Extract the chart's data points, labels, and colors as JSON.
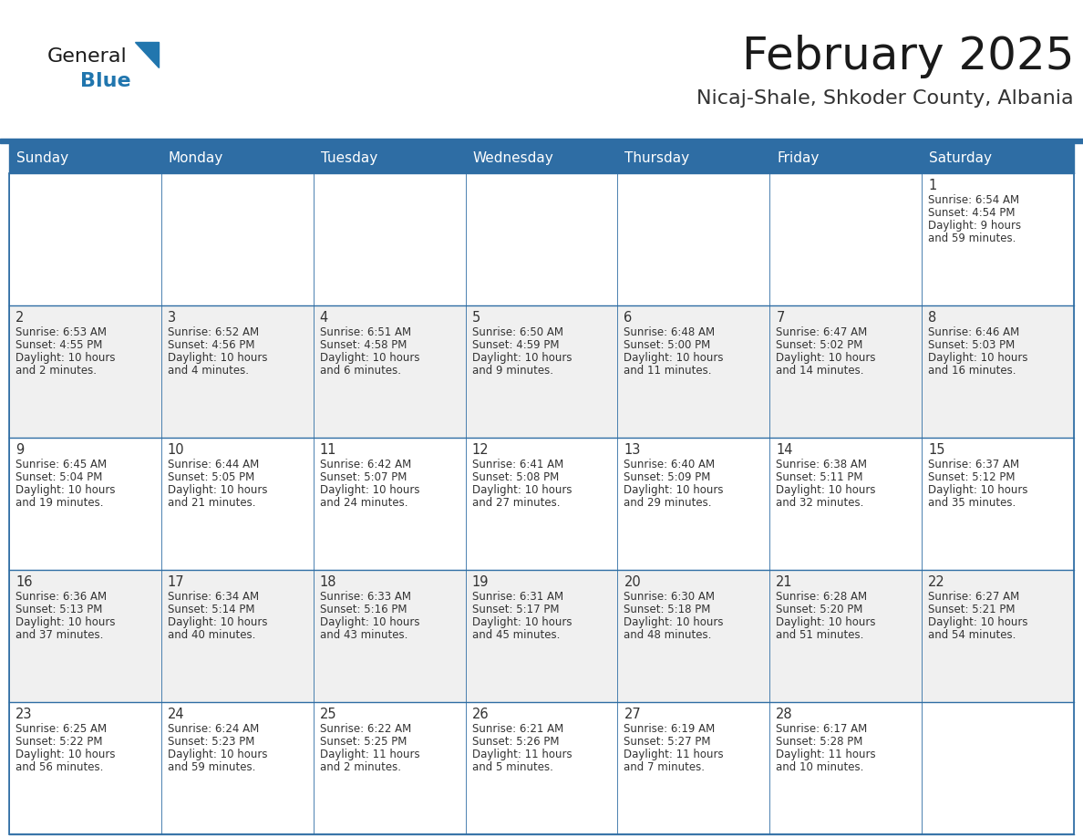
{
  "title": "February 2025",
  "subtitle": "Nicaj-Shale, Shkoder County, Albania",
  "header_bg": "#2E6DA4",
  "header_text": "#FFFFFF",
  "cell_bg_white": "#FFFFFF",
  "cell_bg_gray": "#F0F0F0",
  "cell_border": "#2E6DA4",
  "day_headers": [
    "Sunday",
    "Monday",
    "Tuesday",
    "Wednesday",
    "Thursday",
    "Friday",
    "Saturday"
  ],
  "title_color": "#1a1a1a",
  "subtitle_color": "#333333",
  "text_color": "#333333",
  "days": [
    {
      "day": 1,
      "col": 6,
      "row": 0,
      "sunrise": "6:54 AM",
      "sunset": "4:54 PM",
      "daylight_hours": "9 hours",
      "daylight_mins": "and 59 minutes."
    },
    {
      "day": 2,
      "col": 0,
      "row": 1,
      "sunrise": "6:53 AM",
      "sunset": "4:55 PM",
      "daylight_hours": "10 hours",
      "daylight_mins": "and 2 minutes."
    },
    {
      "day": 3,
      "col": 1,
      "row": 1,
      "sunrise": "6:52 AM",
      "sunset": "4:56 PM",
      "daylight_hours": "10 hours",
      "daylight_mins": "and 4 minutes."
    },
    {
      "day": 4,
      "col": 2,
      "row": 1,
      "sunrise": "6:51 AM",
      "sunset": "4:58 PM",
      "daylight_hours": "10 hours",
      "daylight_mins": "and 6 minutes."
    },
    {
      "day": 5,
      "col": 3,
      "row": 1,
      "sunrise": "6:50 AM",
      "sunset": "4:59 PM",
      "daylight_hours": "10 hours",
      "daylight_mins": "and 9 minutes."
    },
    {
      "day": 6,
      "col": 4,
      "row": 1,
      "sunrise": "6:48 AM",
      "sunset": "5:00 PM",
      "daylight_hours": "10 hours",
      "daylight_mins": "and 11 minutes."
    },
    {
      "day": 7,
      "col": 5,
      "row": 1,
      "sunrise": "6:47 AM",
      "sunset": "5:02 PM",
      "daylight_hours": "10 hours",
      "daylight_mins": "and 14 minutes."
    },
    {
      "day": 8,
      "col": 6,
      "row": 1,
      "sunrise": "6:46 AM",
      "sunset": "5:03 PM",
      "daylight_hours": "10 hours",
      "daylight_mins": "and 16 minutes."
    },
    {
      "day": 9,
      "col": 0,
      "row": 2,
      "sunrise": "6:45 AM",
      "sunset": "5:04 PM",
      "daylight_hours": "10 hours",
      "daylight_mins": "and 19 minutes."
    },
    {
      "day": 10,
      "col": 1,
      "row": 2,
      "sunrise": "6:44 AM",
      "sunset": "5:05 PM",
      "daylight_hours": "10 hours",
      "daylight_mins": "and 21 minutes."
    },
    {
      "day": 11,
      "col": 2,
      "row": 2,
      "sunrise": "6:42 AM",
      "sunset": "5:07 PM",
      "daylight_hours": "10 hours",
      "daylight_mins": "and 24 minutes."
    },
    {
      "day": 12,
      "col": 3,
      "row": 2,
      "sunrise": "6:41 AM",
      "sunset": "5:08 PM",
      "daylight_hours": "10 hours",
      "daylight_mins": "and 27 minutes."
    },
    {
      "day": 13,
      "col": 4,
      "row": 2,
      "sunrise": "6:40 AM",
      "sunset": "5:09 PM",
      "daylight_hours": "10 hours",
      "daylight_mins": "and 29 minutes."
    },
    {
      "day": 14,
      "col": 5,
      "row": 2,
      "sunrise": "6:38 AM",
      "sunset": "5:11 PM",
      "daylight_hours": "10 hours",
      "daylight_mins": "and 32 minutes."
    },
    {
      "day": 15,
      "col": 6,
      "row": 2,
      "sunrise": "6:37 AM",
      "sunset": "5:12 PM",
      "daylight_hours": "10 hours",
      "daylight_mins": "and 35 minutes."
    },
    {
      "day": 16,
      "col": 0,
      "row": 3,
      "sunrise": "6:36 AM",
      "sunset": "5:13 PM",
      "daylight_hours": "10 hours",
      "daylight_mins": "and 37 minutes."
    },
    {
      "day": 17,
      "col": 1,
      "row": 3,
      "sunrise": "6:34 AM",
      "sunset": "5:14 PM",
      "daylight_hours": "10 hours",
      "daylight_mins": "and 40 minutes."
    },
    {
      "day": 18,
      "col": 2,
      "row": 3,
      "sunrise": "6:33 AM",
      "sunset": "5:16 PM",
      "daylight_hours": "10 hours",
      "daylight_mins": "and 43 minutes."
    },
    {
      "day": 19,
      "col": 3,
      "row": 3,
      "sunrise": "6:31 AM",
      "sunset": "5:17 PM",
      "daylight_hours": "10 hours",
      "daylight_mins": "and 45 minutes."
    },
    {
      "day": 20,
      "col": 4,
      "row": 3,
      "sunrise": "6:30 AM",
      "sunset": "5:18 PM",
      "daylight_hours": "10 hours",
      "daylight_mins": "and 48 minutes."
    },
    {
      "day": 21,
      "col": 5,
      "row": 3,
      "sunrise": "6:28 AM",
      "sunset": "5:20 PM",
      "daylight_hours": "10 hours",
      "daylight_mins": "and 51 minutes."
    },
    {
      "day": 22,
      "col": 6,
      "row": 3,
      "sunrise": "6:27 AM",
      "sunset": "5:21 PM",
      "daylight_hours": "10 hours",
      "daylight_mins": "and 54 minutes."
    },
    {
      "day": 23,
      "col": 0,
      "row": 4,
      "sunrise": "6:25 AM",
      "sunset": "5:22 PM",
      "daylight_hours": "10 hours",
      "daylight_mins": "and 56 minutes."
    },
    {
      "day": 24,
      "col": 1,
      "row": 4,
      "sunrise": "6:24 AM",
      "sunset": "5:23 PM",
      "daylight_hours": "10 hours",
      "daylight_mins": "and 59 minutes."
    },
    {
      "day": 25,
      "col": 2,
      "row": 4,
      "sunrise": "6:22 AM",
      "sunset": "5:25 PM",
      "daylight_hours": "11 hours",
      "daylight_mins": "and 2 minutes."
    },
    {
      "day": 26,
      "col": 3,
      "row": 4,
      "sunrise": "6:21 AM",
      "sunset": "5:26 PM",
      "daylight_hours": "11 hours",
      "daylight_mins": "and 5 minutes."
    },
    {
      "day": 27,
      "col": 4,
      "row": 4,
      "sunrise": "6:19 AM",
      "sunset": "5:27 PM",
      "daylight_hours": "11 hours",
      "daylight_mins": "and 7 minutes."
    },
    {
      "day": 28,
      "col": 5,
      "row": 4,
      "sunrise": "6:17 AM",
      "sunset": "5:28 PM",
      "daylight_hours": "11 hours",
      "daylight_mins": "and 10 minutes."
    }
  ],
  "num_rows": 5,
  "logo_text1": "General",
  "logo_text2": "Blue",
  "logo_color1": "#1a1a1a",
  "logo_color2": "#2176AE",
  "logo_triangle_color": "#2176AE"
}
